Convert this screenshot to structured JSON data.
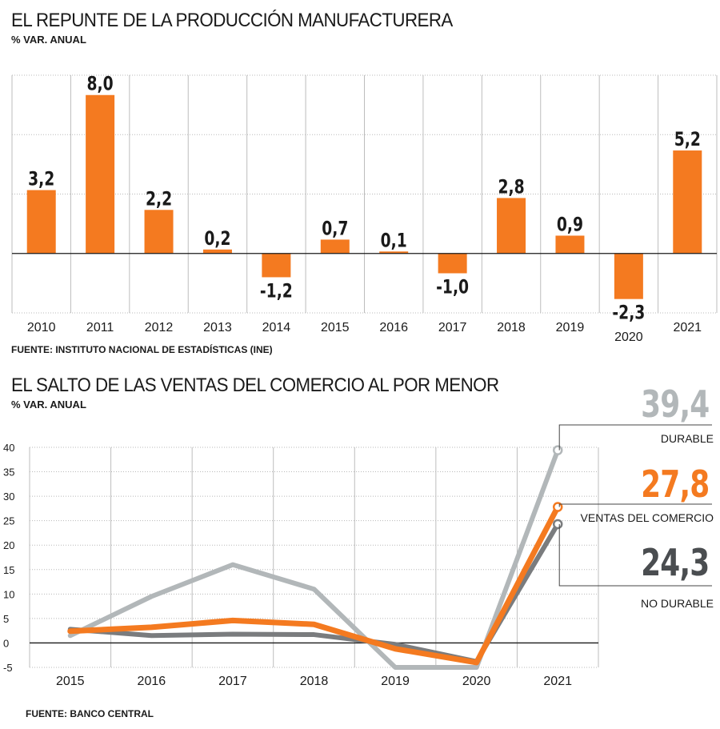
{
  "colors": {
    "orange": "#f47a20",
    "light_gray": "#b2b7b9",
    "dark_gray": "#7a7c7e",
    "grid": "#999999"
  },
  "chart_data": [
    {
      "type": "bar",
      "title": "EL REPUNTE DE LA PRODUCCIÓN MANUFACTURERA",
      "subtitle": "% VAR. ANUAL",
      "source": "FUENTE: INSTITUTO NACIONAL DE ESTADÍSTICAS (INE)",
      "categories": [
        "2010",
        "2011",
        "2012",
        "2013",
        "2014",
        "2015",
        "2016",
        "2017",
        "2018",
        "2019",
        "2020",
        "2021"
      ],
      "values": [
        3.2,
        8.0,
        2.2,
        0.2,
        -1.2,
        0.7,
        0.1,
        -1.0,
        2.8,
        0.9,
        -2.3,
        5.2
      ],
      "value_labels": [
        "3,2",
        "8,0",
        "2,2",
        "0,2",
        "-1,2",
        "0,7",
        "0,1",
        "-1,0",
        "2,8",
        "0,9",
        "-2,3",
        "5,2"
      ],
      "ylim": [
        -3,
        9
      ],
      "grid": true
    },
    {
      "type": "line",
      "title": "EL SALTO DE LAS VENTAS DEL COMERCIO AL POR MENOR",
      "subtitle": "% VAR. ANUAL",
      "source": "FUENTE: BANCO CENTRAL",
      "x": [
        "2015",
        "2016",
        "2017",
        "2018",
        "2019",
        "2020",
        "2021"
      ],
      "yticks": [
        -5,
        0,
        5,
        10,
        15,
        20,
        25,
        30,
        35,
        40
      ],
      "ylim": [
        -5,
        40
      ],
      "grid": true,
      "series": [
        {
          "name": "DURABLE",
          "values": [
            1.5,
            9.5,
            16.0,
            11.0,
            -5.0,
            -5.0,
            39.4
          ],
          "end_label": "39,4"
        },
        {
          "name": "NO DURABLE",
          "values": [
            2.8,
            1.5,
            1.8,
            1.7,
            -0.3,
            -3.8,
            24.3
          ],
          "end_label": "24,3"
        },
        {
          "name": "VENTAS DEL COMERCIO",
          "values": [
            2.4,
            3.2,
            4.6,
            3.8,
            -1.2,
            -4.0,
            27.8
          ],
          "end_label": "27,8"
        }
      ]
    }
  ]
}
